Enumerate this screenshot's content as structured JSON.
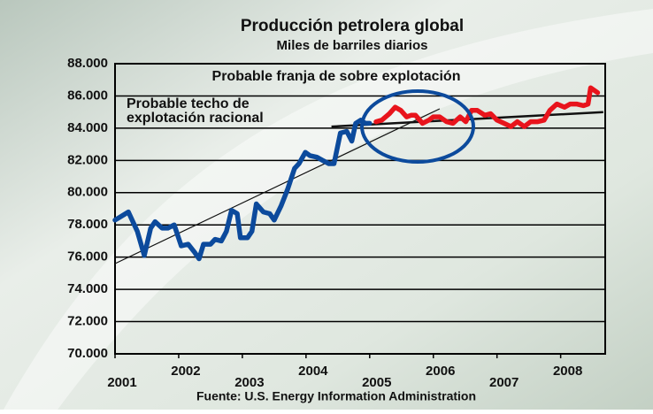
{
  "chart_data": {
    "type": "line",
    "title": "Producción petrolera global",
    "subtitle": "Miles de barriles diarios",
    "annotations": [
      "Probable franja de sobre explotación",
      "Probable techo de",
      "explotación racional"
    ],
    "source": "Fuente: U.S. Energy Information Administration",
    "xlim": [
      2001,
      2008.7
    ],
    "xticks": [
      2001,
      2002,
      2003,
      2004,
      2005,
      2006,
      2007,
      2008
    ],
    "ylim": [
      70000,
      88000
    ],
    "yticks": [
      {
        "value": 70000,
        "label": "70.000"
      },
      {
        "value": 72000,
        "label": "72.000"
      },
      {
        "value": 74000,
        "label": "74.000"
      },
      {
        "value": 76000,
        "label": "76.000"
      },
      {
        "value": 78000,
        "label": "78.000"
      },
      {
        "value": 80000,
        "label": "80.000"
      },
      {
        "value": 82000,
        "label": "82.000"
      },
      {
        "value": 84000,
        "label": "84.000"
      },
      {
        "value": 86000,
        "label": "86.000"
      },
      {
        "value": 88000,
        "label": "88.000"
      }
    ],
    "grid": true,
    "series": [
      {
        "color": "#0c4a9c",
        "x": [
          2001.0,
          2001.21,
          2001.35,
          2001.46,
          2001.56,
          2001.63,
          2001.74,
          2001.83,
          2001.93,
          2002.04,
          2002.15,
          2002.25,
          2002.32,
          2002.39,
          2002.5,
          2002.57,
          2002.67,
          2002.75,
          2002.83,
          2002.92,
          2002.97,
          2003.08,
          2003.15,
          2003.22,
          2003.33,
          2003.43,
          2003.5,
          2003.61,
          2003.71,
          2003.82,
          2003.89,
          2003.99,
          2004.06,
          2004.17,
          2004.26,
          2004.36,
          2004.44,
          2004.54,
          2004.64,
          2004.72,
          2004.78,
          2004.86,
          2004.93,
          2005.0
        ],
        "values": [
          78300,
          78800,
          77600,
          76100,
          77800,
          78200,
          77800,
          77800,
          78000,
          76700,
          76800,
          76300,
          75900,
          76800,
          76800,
          77100,
          77000,
          77600,
          78900,
          78700,
          77200,
          77200,
          77600,
          79300,
          78800,
          78700,
          78300,
          79200,
          80200,
          81500,
          81800,
          82500,
          82300,
          82200,
          82000,
          81800,
          81800,
          83700,
          83800,
          83200,
          84300,
          84500,
          84300,
          84300
        ]
      },
      {
        "color": "#e8141c",
        "x": [
          2005.1,
          2005.19,
          2005.31,
          2005.4,
          2005.49,
          2005.58,
          2005.65,
          2005.72,
          2005.83,
          2005.93,
          2006.0,
          2006.1,
          2006.21,
          2006.31,
          2006.42,
          2006.51,
          2006.6,
          2006.69,
          2006.81,
          2006.9,
          2007.0,
          2007.11,
          2007.22,
          2007.32,
          2007.43,
          2007.53,
          2007.64,
          2007.74,
          2007.83,
          2007.94,
          2008.06,
          2008.15,
          2008.25,
          2008.36,
          2008.43,
          2008.47,
          2008.58
        ],
        "values": [
          84400,
          84500,
          84900,
          85300,
          85100,
          84700,
          84800,
          84800,
          84300,
          84500,
          84700,
          84700,
          84400,
          84300,
          84700,
          84400,
          85100,
          85100,
          84800,
          84900,
          84500,
          84300,
          84100,
          84400,
          84100,
          84400,
          84400,
          84500,
          85100,
          85500,
          85300,
          85500,
          85500,
          85400,
          85500,
          86500,
          86200
        ]
      }
    ],
    "trend_lines": [
      {
        "x": [
          2001,
          2006.1
        ],
        "values": [
          75600,
          85200
        ]
      },
      {
        "x": [
          2004.4,
          2008.67
        ],
        "values": [
          84100,
          85000
        ]
      }
    ]
  }
}
